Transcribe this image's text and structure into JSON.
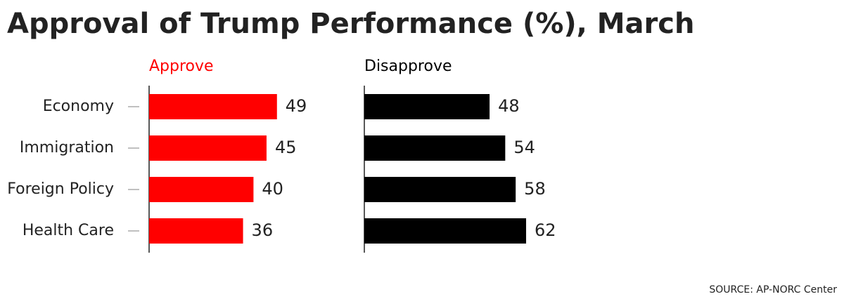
{
  "chart_data": {
    "type": "bar",
    "orientation": "horizontal",
    "title": "Approval of Trump Performance (%), March",
    "source": "SOURCE: AP-NORC Center",
    "categories": [
      "Economy",
      "Immigration",
      "Foreign Policy",
      "Health Care"
    ],
    "series": [
      {
        "name": "Approve",
        "color": "#ff0000",
        "values": [
          49,
          45,
          40,
          36
        ]
      },
      {
        "name": "Disapprove",
        "color": "#000000",
        "values": [
          48,
          54,
          58,
          62
        ]
      }
    ]
  }
}
